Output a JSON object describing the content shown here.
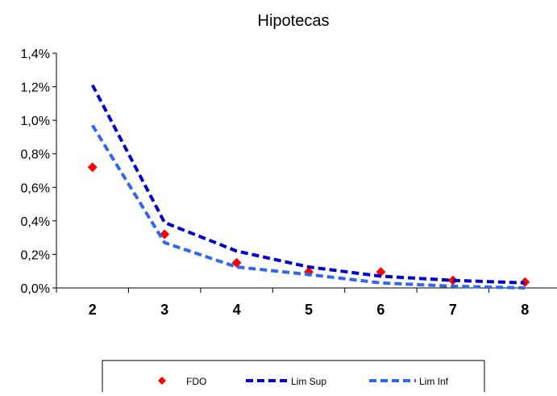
{
  "chart_data": {
    "type": "line",
    "title": "Hipotecas",
    "xlabel": "",
    "ylabel": "",
    "categories": [
      "2",
      "3",
      "4",
      "5",
      "6",
      "7",
      "8"
    ],
    "ylim": [
      0,
      0.014
    ],
    "yticks": [
      0,
      0.002,
      0.004,
      0.006,
      0.008,
      0.01,
      0.012,
      0.014
    ],
    "ytick_labels": [
      "0,0%",
      "0,2%",
      "0,4%",
      "0,6%",
      "0,8%",
      "1,0%",
      "1,2%",
      "1,4%"
    ],
    "grid": false,
    "legend_position": "bottom",
    "series": [
      {
        "name": "FDO",
        "style": "markers",
        "marker": "diamond",
        "color": "#ff0000",
        "values": [
          0.0072,
          0.0032,
          0.0015,
          0.00095,
          0.00095,
          0.00045,
          0.00035
        ]
      },
      {
        "name": "Lim Sup",
        "style": "dashed",
        "color": "#0000cc",
        "values": [
          0.0121,
          0.0039,
          0.0022,
          0.00125,
          0.0007,
          0.00045,
          0.0003
        ]
      },
      {
        "name": "Lim Inf",
        "style": "dashed",
        "color": "#3366ee",
        "values": [
          0.0097,
          0.0027,
          0.00125,
          0.0008,
          0.0003,
          0.0001,
          0.0
        ]
      }
    ]
  }
}
